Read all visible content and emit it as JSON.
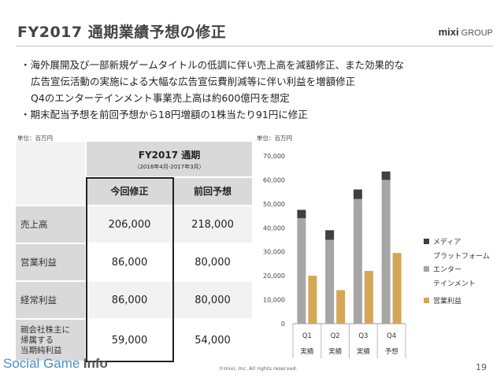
{
  "slide": {
    "title": "FY2017 通期業績予想の修正",
    "logo_main": "mixi",
    "logo_sub": "GROUP",
    "bullets": [
      "・海外展開及び一部新規ゲームタイトルの低調に伴い売上高を減額修正、また効果的な",
      "広告宣伝活動の実施による大幅な広告宣伝費削減等に伴い利益を増額修正",
      "Q4のエンターテインメント事業売上高は約600億円を想定",
      "・期末配当予想を前回予想から18円増額の1株当たり91円に修正"
    ],
    "table_unit": "単位：百万円",
    "chart_unit": "単位：百万円",
    "footer_brand_social": "Social Game",
    "footer_brand_info": "Info",
    "copyright": "©mixi, Inc. All rights reserved.",
    "page_number": "19"
  },
  "table": {
    "header_title": "FY2017 通期",
    "header_period": "（2016年4月-2017年3月）",
    "col_current": "今回修正",
    "col_previous": "前回予想",
    "rows": [
      {
        "label": "売上高",
        "current": "206,000",
        "previous": "218,000"
      },
      {
        "label": "営業利益",
        "current": "86,000",
        "previous": "80,000"
      },
      {
        "label": "経常利益",
        "current": "86,000",
        "previous": "80,000"
      },
      {
        "label": "親会社株主に\n帰属する\n当期純利益",
        "current": "59,000",
        "previous": "54,000"
      }
    ]
  },
  "chart_data": {
    "type": "bar",
    "categories": [
      "Q1",
      "Q2",
      "Q3",
      "Q4"
    ],
    "category_sublabels": [
      "実績",
      "実績",
      "実績",
      "予想"
    ],
    "ylim": [
      0,
      70000
    ],
    "yticks": [
      "0",
      "10,000",
      "20,000",
      "30,000",
      "40,000",
      "50,000",
      "60,000",
      "70,000"
    ],
    "ytick_values": [
      0,
      10000,
      20000,
      30000,
      40000,
      50000,
      60000,
      70000
    ],
    "stacked_series": [
      {
        "name": "エンターテインメント",
        "legend_lines": [
          "エンター",
          "テインメント"
        ],
        "color": "#a6a6a6",
        "values": [
          44000,
          35000,
          52000,
          60000
        ]
      },
      {
        "name": "メディアプラットフォーム",
        "legend_lines": [
          "メディア",
          "プラットフォーム"
        ],
        "color": "#404040",
        "values": [
          3500,
          4000,
          4000,
          3500
        ]
      }
    ],
    "side_series": {
      "name": "営業利益",
      "legend_lines": [
        "営業利益"
      ],
      "color": "#d4a657",
      "values": [
        20000,
        14000,
        22000,
        29500
      ]
    },
    "legend_position": "right",
    "grid": false
  }
}
